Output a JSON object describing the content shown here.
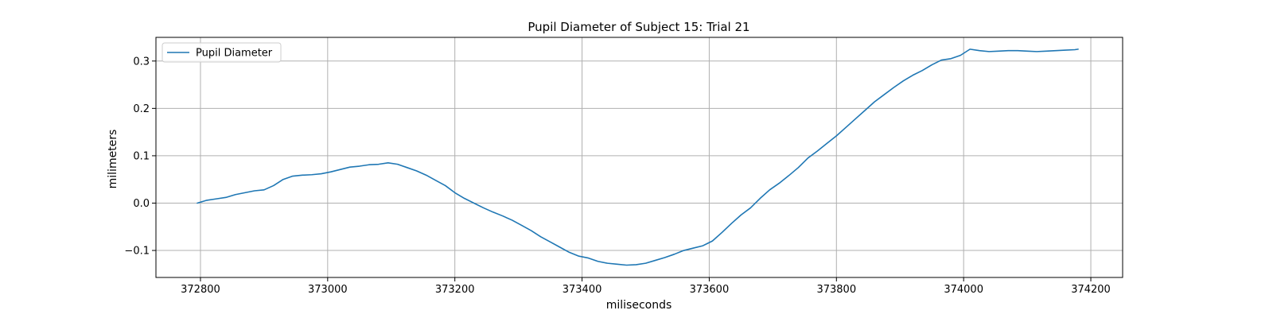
{
  "chart_data": {
    "type": "line",
    "title": "Pupil Diameter of Subject 15: Trial 21",
    "xlabel": "miliseconds",
    "ylabel": "milimeters",
    "xlim": [
      372730,
      374250
    ],
    "ylim": [
      -0.157,
      0.35
    ],
    "xticks": [
      372800,
      373000,
      373200,
      373400,
      373600,
      373800,
      374000,
      374200
    ],
    "yticks": [
      -0.1,
      0.0,
      0.1,
      0.2,
      0.3
    ],
    "ytick_labels": [
      "−0.1",
      "0.0",
      "0.1",
      "0.2",
      "0.3"
    ],
    "grid": true,
    "legend": {
      "position": "top-left",
      "entries": [
        "Pupil Diameter"
      ]
    },
    "colors": {
      "series": "#1f77b4",
      "grid": "#b0b0b0"
    },
    "series": [
      {
        "name": "Pupil Diameter",
        "x": [
          372795,
          372810,
          372825,
          372840,
          372855,
          372870,
          372885,
          372900,
          372915,
          372930,
          372945,
          372960,
          372975,
          372990,
          373005,
          373020,
          373035,
          373050,
          373065,
          373080,
          373095,
          373110,
          373125,
          373140,
          373155,
          373170,
          373185,
          373200,
          373215,
          373230,
          373245,
          373260,
          373275,
          373290,
          373305,
          373320,
          373335,
          373350,
          373365,
          373380,
          373395,
          373410,
          373425,
          373440,
          373455,
          373470,
          373485,
          373500,
          373515,
          373530,
          373545,
          373560,
          373575,
          373590,
          373605,
          373620,
          373635,
          373650,
          373665,
          373680,
          373695,
          373710,
          373725,
          373740,
          373755,
          373770,
          373785,
          373800,
          373815,
          373830,
          373845,
          373860,
          373875,
          373890,
          373905,
          373920,
          373935,
          373950,
          373965,
          373980,
          373995,
          374010,
          374025,
          374040,
          374055,
          374070,
          374085,
          374100,
          374115,
          374130,
          374145,
          374160,
          374175,
          374180
        ],
        "values": [
          0.0,
          0.006,
          0.009,
          0.012,
          0.018,
          0.022,
          0.026,
          0.028,
          0.037,
          0.05,
          0.057,
          0.059,
          0.06,
          0.062,
          0.066,
          0.071,
          0.076,
          0.078,
          0.081,
          0.082,
          0.085,
          0.082,
          0.075,
          0.068,
          0.059,
          0.048,
          0.037,
          0.022,
          0.01,
          0.0,
          -0.01,
          -0.019,
          -0.027,
          -0.036,
          -0.047,
          -0.058,
          -0.071,
          -0.082,
          -0.093,
          -0.104,
          -0.112,
          -0.116,
          -0.123,
          -0.127,
          -0.129,
          -0.131,
          -0.13,
          -0.127,
          -0.121,
          -0.115,
          -0.108,
          -0.1,
          -0.095,
          -0.09,
          -0.08,
          -0.062,
          -0.043,
          -0.025,
          -0.01,
          0.01,
          0.028,
          0.042,
          0.058,
          0.075,
          0.095,
          0.11,
          0.126,
          0.142,
          0.16,
          0.178,
          0.196,
          0.214,
          0.229,
          0.244,
          0.258,
          0.27,
          0.28,
          0.292,
          0.302,
          0.305,
          0.312,
          0.325,
          0.322,
          0.32,
          0.321,
          0.322,
          0.322,
          0.321,
          0.32,
          0.321,
          0.322,
          0.323,
          0.324,
          0.325
        ]
      }
    ]
  }
}
